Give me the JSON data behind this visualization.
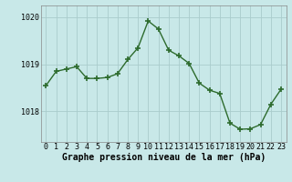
{
  "x": [
    0,
    1,
    2,
    3,
    4,
    5,
    6,
    7,
    8,
    9,
    10,
    11,
    12,
    13,
    14,
    15,
    16,
    17,
    18,
    19,
    20,
    21,
    22,
    23
  ],
  "y": [
    1018.55,
    1018.85,
    1018.9,
    1018.95,
    1018.7,
    1018.7,
    1018.72,
    1018.8,
    1019.1,
    1019.35,
    1019.92,
    1019.75,
    1019.3,
    1019.18,
    1019.02,
    1018.6,
    1018.45,
    1018.38,
    1017.75,
    1017.62,
    1017.63,
    1017.72,
    1018.15,
    1018.47
  ],
  "line_color": "#2d6b2d",
  "marker_color": "#2d6b2d",
  "bg_color": "#c8e8e8",
  "grid_color": "#aacccc",
  "xlabel": "Graphe pression niveau de la mer (hPa)",
  "ylim_min": 1017.35,
  "ylim_max": 1020.25,
  "yticks": [
    1018,
    1019,
    1020
  ],
  "xticks": [
    0,
    1,
    2,
    3,
    4,
    5,
    6,
    7,
    8,
    9,
    10,
    11,
    12,
    13,
    14,
    15,
    16,
    17,
    18,
    19,
    20,
    21,
    22,
    23
  ],
  "xlabel_fontsize": 7,
  "tick_fontsize": 6,
  "line_width": 1.0,
  "marker_size": 4
}
